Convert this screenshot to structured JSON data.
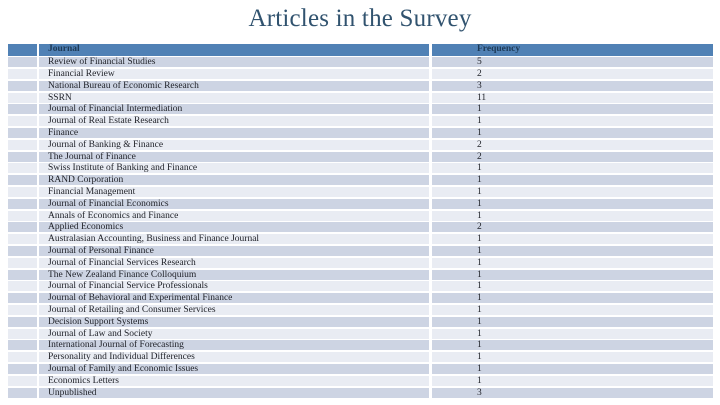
{
  "title": "Articles in the Survey",
  "colors": {
    "header_bg": "#5081b5",
    "header_text": "#1d3a57",
    "band_dark": "#cdd4e3",
    "band_light": "#e9ecf3",
    "title_text": "#31536f",
    "cell_text": "#1e2027",
    "slide_bg": "#ffffff"
  },
  "table": {
    "columns": [
      "Journal",
      "Frequency"
    ],
    "rows": [
      {
        "journal": "Review of Financial Studies",
        "frequency": "5"
      },
      {
        "journal": "Financial Review",
        "frequency": "2"
      },
      {
        "journal": "National Bureau of Economic Research",
        "frequency": "3"
      },
      {
        "journal": "SSRN",
        "frequency": "11"
      },
      {
        "journal": "Journal of Financial Intermediation",
        "frequency": "1"
      },
      {
        "journal": "Journal of Real Estate Research",
        "frequency": "1"
      },
      {
        "journal": "Finance",
        "frequency": "1"
      },
      {
        "journal": "Journal of Banking & Finance",
        "frequency": "2"
      },
      {
        "journal": "The Journal of Finance",
        "frequency": "2"
      },
      {
        "journal": "Swiss Institute of Banking and Finance",
        "frequency": "1"
      },
      {
        "journal": "RAND Corporation",
        "frequency": "1"
      },
      {
        "journal": "Financial Management",
        "frequency": "1"
      },
      {
        "journal": "Journal of Financial Economics",
        "frequency": "1"
      },
      {
        "journal": "Annals of Economics and Finance",
        "frequency": "1"
      },
      {
        "journal": "Applied Economics",
        "frequency": "2"
      },
      {
        "journal": "Australasian Accounting, Business and Finance Journal",
        "frequency": "1"
      },
      {
        "journal": "Journal of Personal Finance",
        "frequency": "1"
      },
      {
        "journal": "Journal of Financial Services Research",
        "frequency": "1"
      },
      {
        "journal": "The New Zealand Finance Colloquium",
        "frequency": "1"
      },
      {
        "journal": "Journal of Financial Service Professionals",
        "frequency": "1"
      },
      {
        "journal": "Journal of Behavioral and Experimental Finance",
        "frequency": "1"
      },
      {
        "journal": "Journal of Retailing and Consumer Services",
        "frequency": "1"
      },
      {
        "journal": "Decision Support Systems",
        "frequency": "1"
      },
      {
        "journal": "Journal of Law and Society",
        "frequency": "1"
      },
      {
        "journal": "International Journal of Forecasting",
        "frequency": "1"
      },
      {
        "journal": "Personality and Individual Differences",
        "frequency": "1"
      },
      {
        "journal": "Journal of Family and Economic Issues",
        "frequency": "1"
      },
      {
        "journal": "Economics Letters",
        "frequency": "1"
      },
      {
        "journal": "Unpublished",
        "frequency": "3"
      }
    ]
  },
  "chart_data": {
    "type": "table",
    "title": "Articles in the Survey",
    "columns": [
      "Journal",
      "Frequency"
    ],
    "categories": [
      "Review of Financial Studies",
      "Financial Review",
      "National Bureau of Economic Research",
      "SSRN",
      "Journal of Financial Intermediation",
      "Journal of Real Estate Research",
      "Finance",
      "Journal of Banking & Finance",
      "The Journal of Finance",
      "Swiss Institute of Banking and Finance",
      "RAND Corporation",
      "Financial Management",
      "Journal of Financial Economics",
      "Annals of Economics and Finance",
      "Applied Economics",
      "Australasian Accounting, Business and Finance Journal",
      "Journal of Personal Finance",
      "Journal of Financial Services Research",
      "The New Zealand Finance Colloquium",
      "Journal of Financial Service Professionals",
      "Journal of Behavioral and Experimental Finance",
      "Journal of Retailing and Consumer Services",
      "Decision Support Systems",
      "Journal of Law and Society",
      "International Journal of Forecasting",
      "Personality and Individual Differences",
      "Journal of Family and Economic Issues",
      "Economics Letters",
      "Unpublished"
    ],
    "values": [
      5,
      2,
      3,
      11,
      1,
      1,
      1,
      2,
      2,
      1,
      1,
      1,
      1,
      1,
      2,
      1,
      1,
      1,
      1,
      1,
      1,
      1,
      1,
      1,
      1,
      1,
      1,
      1,
      3
    ]
  }
}
